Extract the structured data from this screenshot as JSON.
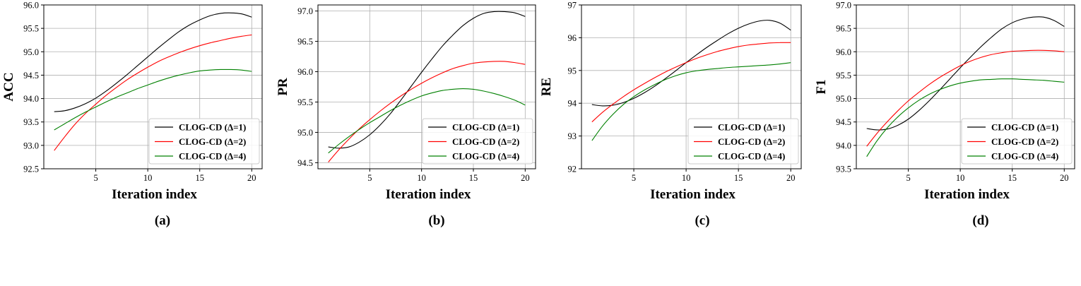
{
  "figure": {
    "captions": [
      "(a)",
      "(b)",
      "(c)",
      "(d)"
    ]
  },
  "chart_data": [
    {
      "type": "line",
      "title": "",
      "xlabel": "Iteration index",
      "ylabel": "ACC",
      "xlim": [
        0,
        21
      ],
      "ylim": [
        92.5,
        96.0
      ],
      "xticks": [
        5,
        10,
        15,
        20
      ],
      "yticks": [
        92.5,
        93.0,
        93.5,
        94.0,
        94.5,
        95.0,
        95.5,
        96.0
      ],
      "ytick_labels": [
        "92.5",
        "93.0",
        "93.5",
        "94.0",
        "94.5",
        "95.0",
        "95.5",
        "96.0"
      ],
      "legend_position": "lower-right",
      "x": [
        1,
        2,
        3,
        4,
        5,
        6,
        7,
        8,
        9,
        10,
        11,
        12,
        13,
        14,
        15,
        16,
        17,
        18,
        19,
        20
      ],
      "series": [
        {
          "name": "CLOG-CD (Δ=1)",
          "color": "#000000",
          "values": [
            93.72,
            93.74,
            93.8,
            93.89,
            94.01,
            94.16,
            94.33,
            94.51,
            94.7,
            94.89,
            95.08,
            95.26,
            95.43,
            95.57,
            95.68,
            95.77,
            95.82,
            95.83,
            95.81,
            95.74
          ]
        },
        {
          "name": "CLOG-CD (Δ=2)",
          "color": "#ff0000",
          "values": [
            92.89,
            93.18,
            93.45,
            93.68,
            93.88,
            94.07,
            94.24,
            94.4,
            94.54,
            94.67,
            94.79,
            94.89,
            94.98,
            95.06,
            95.13,
            95.19,
            95.24,
            95.29,
            95.33,
            95.36
          ]
        },
        {
          "name": "CLOG-CD (Δ=4)",
          "color": "#008000",
          "values": [
            93.33,
            93.46,
            93.59,
            93.71,
            93.82,
            93.93,
            94.03,
            94.12,
            94.21,
            94.29,
            94.37,
            94.44,
            94.5,
            94.55,
            94.59,
            94.61,
            94.62,
            94.62,
            94.61,
            94.58
          ]
        }
      ]
    },
    {
      "type": "line",
      "title": "",
      "xlabel": "Iteration index",
      "ylabel": "PR",
      "xlim": [
        0,
        21
      ],
      "ylim": [
        94.4,
        97.1
      ],
      "xticks": [
        5,
        10,
        15,
        20
      ],
      "yticks": [
        94.5,
        95.0,
        95.5,
        96.0,
        96.5,
        97.0
      ],
      "ytick_labels": [
        "94.5",
        "95.0",
        "95.5",
        "96.0",
        "96.5",
        "97.0"
      ],
      "legend_position": "lower-right",
      "x": [
        1,
        2,
        3,
        4,
        5,
        6,
        7,
        8,
        9,
        10,
        11,
        12,
        13,
        14,
        15,
        16,
        17,
        18,
        19,
        20
      ],
      "series": [
        {
          "name": "CLOG-CD (Δ=1)",
          "color": "#000000",
          "values": [
            94.76,
            94.74,
            94.76,
            94.84,
            94.96,
            95.12,
            95.31,
            95.53,
            95.76,
            95.99,
            96.21,
            96.42,
            96.6,
            96.76,
            96.88,
            96.96,
            96.99,
            96.99,
            96.97,
            96.91
          ]
        },
        {
          "name": "CLOG-CD (Δ=2)",
          "color": "#ff0000",
          "values": [
            94.51,
            94.71,
            94.89,
            95.06,
            95.21,
            95.35,
            95.48,
            95.6,
            95.71,
            95.81,
            95.9,
            95.98,
            96.05,
            96.1,
            96.14,
            96.16,
            96.17,
            96.17,
            96.15,
            96.12
          ]
        },
        {
          "name": "CLOG-CD (Δ=4)",
          "color": "#008000",
          "values": [
            94.66,
            94.8,
            94.93,
            95.05,
            95.16,
            95.26,
            95.36,
            95.45,
            95.53,
            95.6,
            95.65,
            95.69,
            95.71,
            95.72,
            95.71,
            95.68,
            95.64,
            95.59,
            95.53,
            95.45
          ]
        }
      ]
    },
    {
      "type": "line",
      "title": "",
      "xlabel": "Iteration index",
      "ylabel": "RE",
      "xlim": [
        0,
        21
      ],
      "ylim": [
        92,
        97
      ],
      "xticks": [
        5,
        10,
        15,
        20
      ],
      "yticks": [
        92,
        93,
        94,
        95,
        96,
        97
      ],
      "ytick_labels": [
        "92",
        "93",
        "94",
        "95",
        "96",
        "97"
      ],
      "legend_position": "lower-right",
      "x": [
        1,
        2,
        3,
        4,
        5,
        6,
        7,
        8,
        9,
        10,
        11,
        12,
        13,
        14,
        15,
        16,
        17,
        18,
        19,
        20
      ],
      "series": [
        {
          "name": "CLOG-CD (Δ=1)",
          "color": "#000000",
          "values": [
            93.96,
            93.92,
            93.94,
            94.02,
            94.15,
            94.32,
            94.52,
            94.75,
            94.99,
            95.24,
            95.48,
            95.71,
            95.92,
            96.12,
            96.29,
            96.42,
            96.51,
            96.53,
            96.44,
            96.23
          ]
        },
        {
          "name": "CLOG-CD (Δ=2)",
          "color": "#ff0000",
          "values": [
            93.43,
            93.72,
            93.97,
            94.2,
            94.41,
            94.6,
            94.78,
            94.95,
            95.1,
            95.24,
            95.37,
            95.48,
            95.58,
            95.66,
            95.73,
            95.78,
            95.81,
            95.84,
            95.85,
            95.85
          ]
        },
        {
          "name": "CLOG-CD (Δ=4)",
          "color": "#008000",
          "values": [
            92.86,
            93.3,
            93.66,
            93.96,
            94.2,
            94.4,
            94.57,
            94.72,
            94.84,
            94.93,
            94.99,
            95.03,
            95.06,
            95.09,
            95.11,
            95.13,
            95.15,
            95.17,
            95.2,
            95.24
          ]
        }
      ]
    },
    {
      "type": "line",
      "title": "",
      "xlabel": "Iteration index",
      "ylabel": "F1",
      "xlim": [
        0,
        21
      ],
      "ylim": [
        93.5,
        97.0
      ],
      "xticks": [
        5,
        10,
        15,
        20
      ],
      "yticks": [
        93.5,
        94.0,
        94.5,
        95.0,
        95.5,
        96.0,
        96.5,
        97.0
      ],
      "ytick_labels": [
        "93.5",
        "94.0",
        "94.5",
        "95.0",
        "95.5",
        "96.0",
        "96.5",
        "97.0"
      ],
      "legend_position": "lower-right",
      "x": [
        1,
        2,
        3,
        4,
        5,
        6,
        7,
        8,
        9,
        10,
        11,
        12,
        13,
        14,
        15,
        16,
        17,
        18,
        19,
        20
      ],
      "series": [
        {
          "name": "CLOG-CD (Δ=1)",
          "color": "#000000",
          "values": [
            94.36,
            94.33,
            94.35,
            94.43,
            94.56,
            94.74,
            94.95,
            95.18,
            95.42,
            95.66,
            95.89,
            96.11,
            96.31,
            96.49,
            96.62,
            96.7,
            96.74,
            96.74,
            96.67,
            96.54
          ]
        },
        {
          "name": "CLOG-CD (Δ=2)",
          "color": "#ff0000",
          "values": [
            93.98,
            94.26,
            94.51,
            94.74,
            94.95,
            95.13,
            95.3,
            95.45,
            95.58,
            95.7,
            95.8,
            95.88,
            95.94,
            95.98,
            96.01,
            96.02,
            96.03,
            96.03,
            96.02,
            96.0
          ]
        },
        {
          "name": "CLOG-CD (Δ=4)",
          "color": "#008000",
          "values": [
            93.76,
            94.1,
            94.38,
            94.61,
            94.8,
            94.96,
            95.09,
            95.19,
            95.27,
            95.33,
            95.37,
            95.4,
            95.41,
            95.42,
            95.42,
            95.41,
            95.4,
            95.39,
            95.37,
            95.35
          ]
        }
      ]
    }
  ]
}
